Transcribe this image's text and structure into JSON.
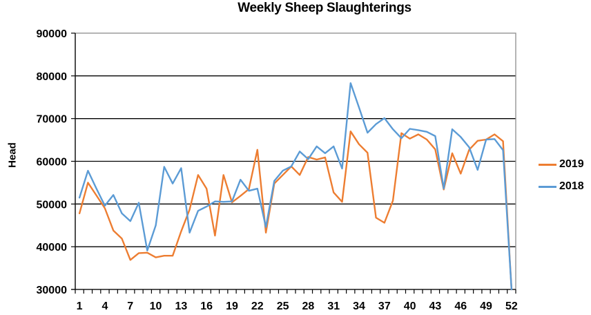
{
  "chart_data": {
    "type": "line",
    "title": "Weekly Sheep Slaughterings",
    "xlabel": "",
    "ylabel": "Head",
    "ylim": [
      30000,
      90000
    ],
    "yticks": [
      30000,
      40000,
      50000,
      60000,
      70000,
      80000,
      90000
    ],
    "xtick_labels": [
      "1",
      "4",
      "7",
      "10",
      "13",
      "16",
      "19",
      "22",
      "25",
      "28",
      "31",
      "34",
      "37",
      "40",
      "43",
      "46",
      "49",
      "52"
    ],
    "x": [
      1,
      2,
      3,
      4,
      5,
      6,
      7,
      8,
      9,
      10,
      11,
      12,
      13,
      14,
      15,
      16,
      17,
      18,
      19,
      20,
      21,
      22,
      23,
      24,
      25,
      26,
      27,
      28,
      29,
      30,
      31,
      32,
      33,
      34,
      35,
      36,
      37,
      38,
      39,
      40,
      41,
      42,
      43,
      44,
      45,
      46,
      47,
      48,
      49,
      50,
      51,
      52
    ],
    "grid": "horizontal major",
    "legend_position": "right",
    "series": [
      {
        "name": "2019",
        "color": "#ED7D31",
        "values": [
          47800,
          55000,
          52000,
          49000,
          43800,
          41900,
          36900,
          38500,
          38600,
          37500,
          37900,
          37900,
          43600,
          48700,
          56800,
          53600,
          42600,
          56800,
          50400,
          51900,
          53500,
          62700,
          43300,
          54800,
          56800,
          58800,
          56800,
          61000,
          60400,
          60900,
          52700,
          50500,
          67000,
          64000,
          62000,
          46800,
          45600,
          50800,
          66600,
          65300,
          66300,
          65100,
          62800,
          53400,
          61900,
          57100,
          62700,
          64800,
          65100,
          66300,
          64700,
          30000
        ]
      },
      {
        "name": "2018",
        "color": "#5B9BD5",
        "values": [
          51500,
          57800,
          53600,
          49600,
          52100,
          47800,
          46000,
          50300,
          39100,
          45000,
          58700,
          54800,
          58400,
          43300,
          48400,
          49400,
          50600,
          50500,
          50600,
          55700,
          53100,
          53600,
          44600,
          55400,
          57800,
          58800,
          62300,
          60500,
          63500,
          61900,
          63500,
          58300,
          78300,
          72600,
          66700,
          68700,
          70100,
          67500,
          65400,
          67600,
          67300,
          66900,
          65900,
          53600,
          67500,
          65700,
          63300,
          58000,
          65100,
          65200,
          62600,
          30000
        ]
      }
    ]
  },
  "legend": {
    "items": [
      {
        "label": "2019",
        "color": "#ED7D31"
      },
      {
        "label": "2018",
        "color": "#5B9BD5"
      }
    ]
  }
}
